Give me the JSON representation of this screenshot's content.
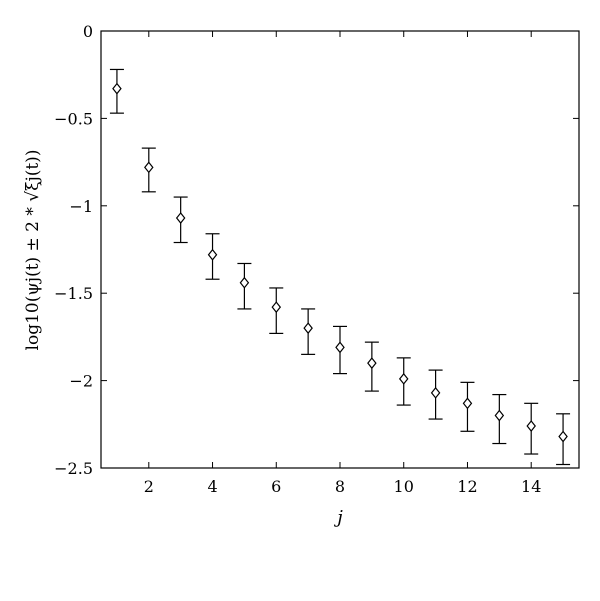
{
  "chart_data": {
    "type": "scatter",
    "title": "",
    "xlabel": "j",
    "ylabel": "log10(ψj(t) ± 2 * √ξj(t))",
    "xlim": [
      0.5,
      15.5
    ],
    "ylim": [
      -2.5,
      0
    ],
    "x_ticks": [
      2,
      4,
      6,
      8,
      10,
      12,
      14
    ],
    "y_ticks": [
      0,
      -0.5,
      -1,
      -1.5,
      -2,
      -2.5
    ],
    "grid": false,
    "legend": "none",
    "marker": "diamond",
    "series": [
      {
        "x": [
          1,
          2,
          3,
          4,
          5,
          6,
          7,
          8,
          9,
          10,
          11,
          12,
          13,
          14,
          15
        ],
        "y": [
          -0.33,
          -0.78,
          -1.07,
          -1.28,
          -1.44,
          -1.58,
          -1.7,
          -1.81,
          -1.9,
          -1.99,
          -2.07,
          -2.13,
          -2.2,
          -2.26,
          -2.32
        ],
        "lower": [
          -0.47,
          -0.92,
          -1.21,
          -1.42,
          -1.59,
          -1.73,
          -1.85,
          -1.96,
          -2.06,
          -2.14,
          -2.22,
          -2.29,
          -2.36,
          -2.42,
          -2.48
        ],
        "upper": [
          -0.22,
          -0.67,
          -0.95,
          -1.16,
          -1.33,
          -1.47,
          -1.59,
          -1.69,
          -1.78,
          -1.87,
          -1.94,
          -2.01,
          -2.08,
          -2.13,
          -2.19
        ]
      }
    ]
  }
}
